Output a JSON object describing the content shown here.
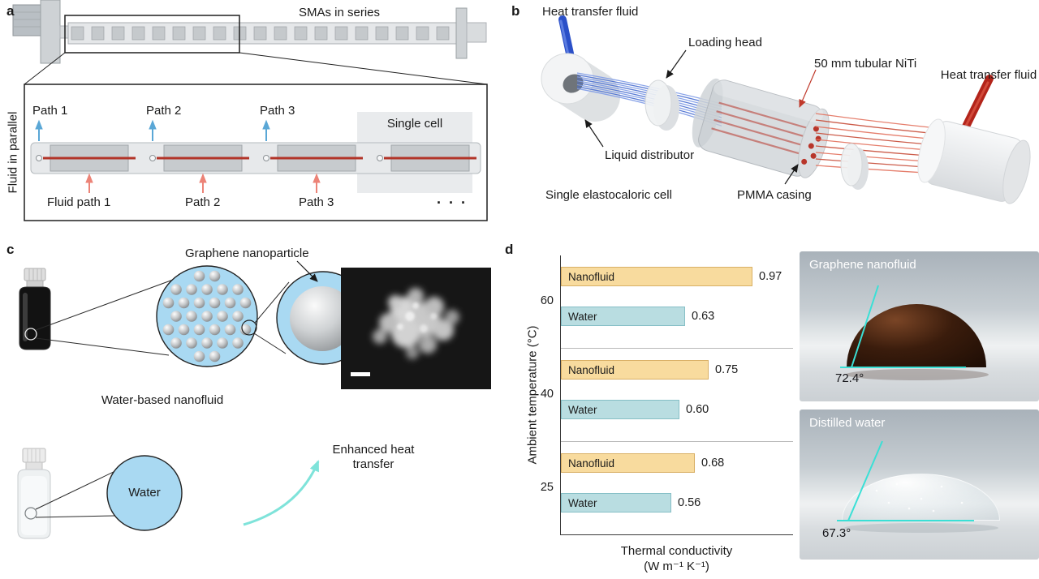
{
  "panel_a": {
    "label": "a",
    "title": "SMAs in series",
    "side_label": "Fluid in parallel",
    "top_paths": [
      "Path 1",
      "Path 2",
      "Path 3"
    ],
    "single_cell": "Single cell",
    "bottom_paths": [
      "Fluid path 1",
      "Path 2",
      "Path 3"
    ],
    "ellipsis": "· · ·"
  },
  "panel_b": {
    "label": "b",
    "heat_fluid_left": "Heat transfer fluid",
    "loading_head": "Loading head",
    "niti_label": "50 mm tubular NiTi",
    "heat_fluid_right": "Heat transfer fluid",
    "liquid_distributor": "Liquid distributor",
    "single_cell": "Single elastocaloric cell",
    "pmma_casing": "PMMA casing"
  },
  "panel_c": {
    "label": "c",
    "nanoparticle_label": "Graphene nanoparticle",
    "nanofluid_label": "Water-based nanofluid",
    "water_label": "Water",
    "enhanced_label": "Enhanced heat transfer"
  },
  "panel_d": {
    "label": "d",
    "photos": [
      {
        "title": "Graphene nanofluid",
        "contact_angle": "72.4°"
      },
      {
        "title": "Distilled water",
        "contact_angle": "67.3°"
      }
    ]
  },
  "chart_data": {
    "type": "bar",
    "orientation": "horizontal",
    "ylabel": "Ambient temperature (°C)",
    "xlabel": "Thermal conductivity",
    "xlabel_units": "(W m⁻¹ K⁻¹)",
    "xlim": [
      0,
      1.18
    ],
    "categories": [
      "60",
      "40",
      "25"
    ],
    "grid": "group-separators",
    "legend": "labels-inside-bars",
    "series": [
      {
        "name": "Nanofluid",
        "color": "#f8db9e",
        "border": "#d9b066",
        "values": [
          0.97,
          0.75,
          0.68
        ]
      },
      {
        "name": "Water",
        "color": "#b9dde1",
        "border": "#86bfc6",
        "values": [
          0.63,
          0.6,
          0.56
        ]
      }
    ]
  }
}
